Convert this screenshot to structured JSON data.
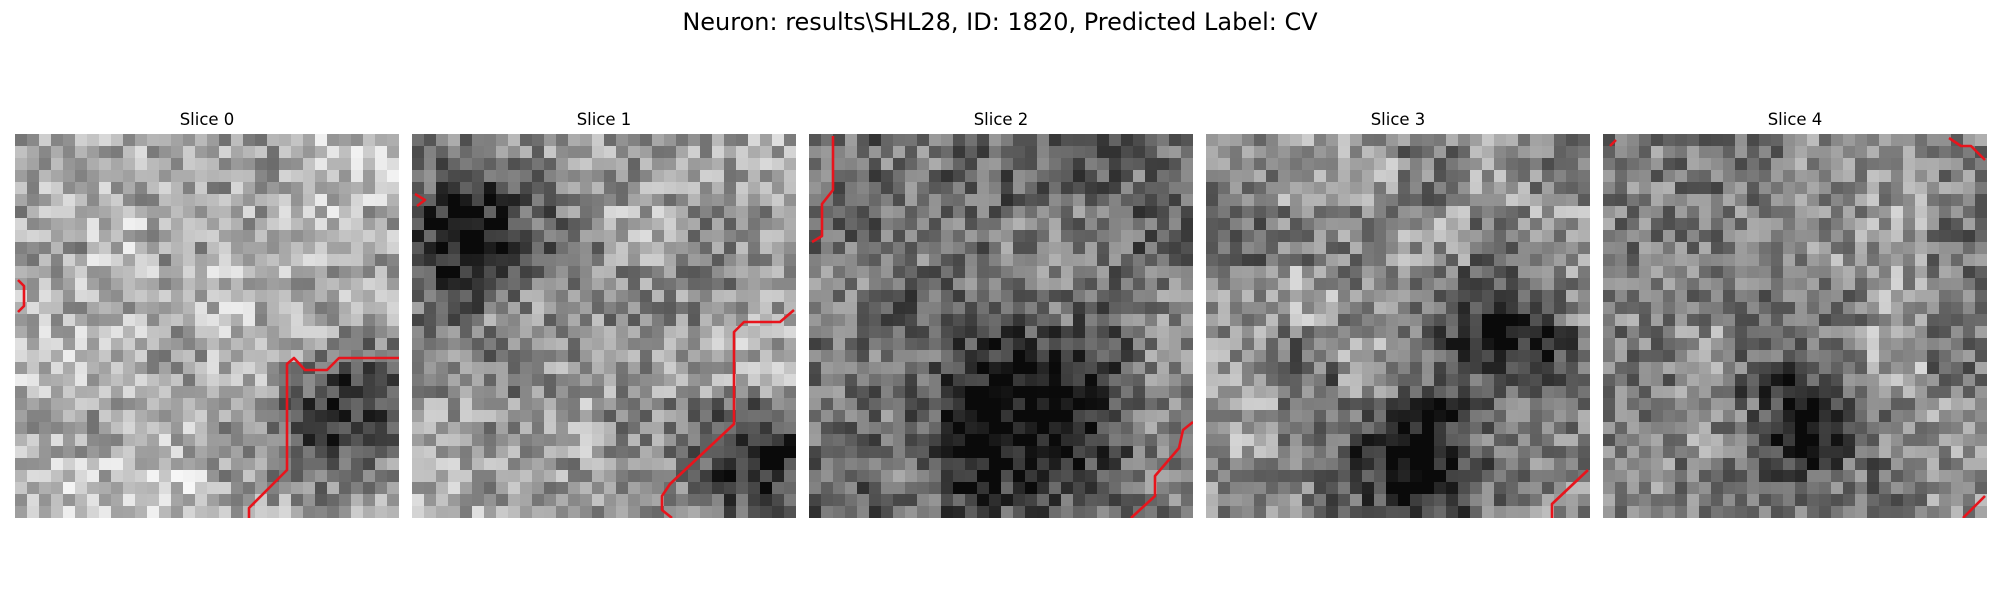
{
  "figure": {
    "title": "Neuron: results\\SHL28, ID: 1820, Predicted Label: CV"
  },
  "panels": [
    {
      "title": "Slice 0",
      "seed": 11,
      "base": 0.7,
      "amp": 0.16,
      "dark": [
        [
          0.85,
          0.72,
          0.13
        ]
      ]
    },
    {
      "title": "Slice 1",
      "seed": 23,
      "base": 0.6,
      "amp": 0.2,
      "dark": [
        [
          0.9,
          0.85,
          0.1
        ],
        [
          0.15,
          0.25,
          0.12
        ]
      ]
    },
    {
      "title": "Slice 2",
      "seed": 37,
      "base": 0.46,
      "amp": 0.18,
      "dark": [
        [
          0.55,
          0.75,
          0.15
        ]
      ]
    },
    {
      "title": "Slice 3",
      "seed": 41,
      "base": 0.55,
      "amp": 0.22,
      "dark": [
        [
          0.75,
          0.5,
          0.12
        ],
        [
          0.5,
          0.85,
          0.12
        ]
      ]
    },
    {
      "title": "Slice 4",
      "seed": 53,
      "base": 0.55,
      "amp": 0.22,
      "dark": [
        [
          0.5,
          0.75,
          0.1
        ]
      ]
    }
  ],
  "contour": {
    "color": "#e8141c"
  }
}
